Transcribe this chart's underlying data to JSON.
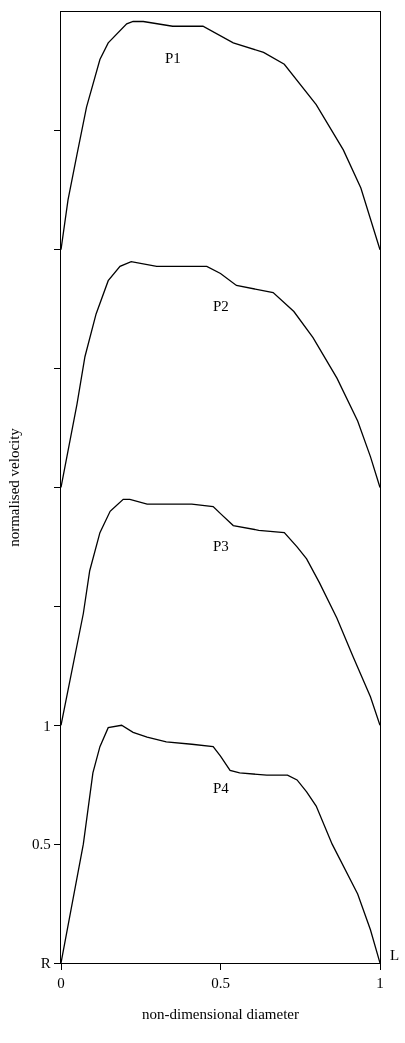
{
  "chart_data": {
    "type": "line",
    "xlabel": "non-dimensional diameter",
    "ylabel": "normalised velocity",
    "xlim": [
      0,
      1
    ],
    "ylim": [
      0,
      4
    ],
    "xticks": [
      0,
      0.5,
      1
    ],
    "yticks": [
      {
        "value": 0,
        "label": "R"
      },
      0.5,
      1,
      {
        "value": 1.5,
        "label": null
      },
      {
        "value": 2,
        "label": null
      },
      {
        "value": 2.5,
        "label": null
      },
      {
        "value": 3,
        "label": null
      },
      {
        "value": 3.5,
        "label": null
      }
    ],
    "series": [
      {
        "name": "P1",
        "color": "#000000",
        "x": [
          0,
          0.022,
          0.05,
          0.08,
          0.122,
          0.148,
          0.206,
          0.226,
          0.258,
          0.35,
          0.445,
          0.54,
          0.635,
          0.7,
          0.8,
          0.885,
          0.94,
          1
        ],
        "values": [
          3.0,
          3.21,
          3.4,
          3.6,
          3.8,
          3.87,
          3.95,
          3.96,
          3.96,
          3.94,
          3.94,
          3.87,
          3.83,
          3.78,
          3.61,
          3.42,
          3.26,
          3.0
        ]
      },
      {
        "name": "P2",
        "color": "#000000",
        "x": [
          0,
          0.05,
          0.075,
          0.11,
          0.148,
          0.185,
          0.22,
          0.3,
          0.457,
          0.5,
          0.55,
          0.665,
          0.73,
          0.79,
          0.865,
          0.93,
          0.97,
          1
        ],
        "values": [
          2.0,
          2.35,
          2.55,
          2.73,
          2.87,
          2.93,
          2.95,
          2.93,
          2.93,
          2.9,
          2.85,
          2.82,
          2.74,
          2.63,
          2.46,
          2.28,
          2.13,
          2.0
        ]
      },
      {
        "name": "P3",
        "color": "#000000",
        "x": [
          0,
          0.07,
          0.09,
          0.122,
          0.154,
          0.195,
          0.216,
          0.27,
          0.41,
          0.477,
          0.5,
          0.54,
          0.62,
          0.7,
          0.74,
          0.77,
          0.81,
          0.865,
          0.915,
          0.97,
          1
        ],
        "values": [
          1.0,
          1.47,
          1.65,
          1.81,
          1.9,
          1.95,
          1.95,
          1.93,
          1.93,
          1.92,
          1.89,
          1.84,
          1.82,
          1.81,
          1.75,
          1.7,
          1.6,
          1.45,
          1.29,
          1.12,
          1.0
        ]
      },
      {
        "name": "P4",
        "color": "#000000",
        "x": [
          0,
          0.07,
          0.1,
          0.122,
          0.148,
          0.19,
          0.226,
          0.27,
          0.33,
          0.41,
          0.477,
          0.5,
          0.53,
          0.56,
          0.645,
          0.71,
          0.74,
          0.77,
          0.8,
          0.85,
          0.93,
          0.97,
          1
        ],
        "values": [
          0,
          0.5,
          0.8,
          0.91,
          0.99,
          1.0,
          0.97,
          0.95,
          0.93,
          0.92,
          0.91,
          0.87,
          0.81,
          0.8,
          0.79,
          0.79,
          0.77,
          0.72,
          0.66,
          0.5,
          0.29,
          0.14,
          0
        ]
      }
    ],
    "annotations": [
      {
        "text": "L",
        "x": 1,
        "y": 0
      }
    ]
  }
}
